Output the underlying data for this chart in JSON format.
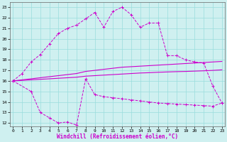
{
  "xlabel": "Windchill (Refroidissement éolien,°C)",
  "ylabel": "",
  "bg_color": "#cff0f0",
  "line_color": "#cc00cc",
  "grid_color": "#99dddd",
  "x_ticks": [
    0,
    1,
    2,
    3,
    4,
    5,
    6,
    7,
    8,
    9,
    10,
    11,
    12,
    13,
    14,
    15,
    16,
    17,
    18,
    19,
    20,
    21,
    22,
    23
  ],
  "y_ticks": [
    12,
    13,
    14,
    15,
    16,
    17,
    18,
    19,
    20,
    21,
    22,
    23
  ],
  "xlim": [
    -0.3,
    23.3
  ],
  "ylim": [
    11.7,
    23.5
  ],
  "line1_x": [
    0,
    1,
    2,
    3,
    4,
    5,
    6,
    7,
    8,
    9,
    10,
    11,
    12,
    13,
    14,
    15,
    16,
    17,
    18,
    19,
    20,
    21,
    22,
    23
  ],
  "line1_y": [
    16.0,
    16.7,
    17.8,
    18.5,
    19.5,
    20.5,
    21.0,
    21.3,
    21.9,
    22.5,
    21.1,
    22.6,
    23.0,
    22.3,
    21.1,
    21.5,
    21.5,
    18.4,
    18.4,
    18.0,
    17.8,
    17.7,
    15.5,
    13.9
  ],
  "line2_x": [
    0,
    1,
    2,
    3,
    4,
    5,
    6,
    7,
    8,
    9,
    10,
    11,
    12,
    13,
    14,
    15,
    16,
    17,
    18,
    19,
    20,
    21,
    22,
    23
  ],
  "line2_y": [
    16.0,
    16.1,
    16.2,
    16.3,
    16.4,
    16.5,
    16.6,
    16.7,
    16.9,
    17.0,
    17.1,
    17.2,
    17.3,
    17.35,
    17.4,
    17.45,
    17.5,
    17.55,
    17.6,
    17.65,
    17.7,
    17.75,
    17.8,
    17.85
  ],
  "line3_x": [
    0,
    1,
    2,
    3,
    4,
    5,
    6,
    7,
    8,
    9,
    10,
    11,
    12,
    13,
    14,
    15,
    16,
    17,
    18,
    19,
    20,
    21,
    22,
    23
  ],
  "line3_y": [
    16.0,
    16.05,
    16.1,
    16.15,
    16.2,
    16.25,
    16.3,
    16.35,
    16.45,
    16.5,
    16.55,
    16.6,
    16.65,
    16.7,
    16.75,
    16.78,
    16.82,
    16.85,
    16.88,
    16.9,
    16.93,
    16.96,
    17.0,
    17.05
  ],
  "line4_x": [
    0,
    2,
    3,
    4,
    5,
    6,
    7,
    8,
    9,
    10,
    11,
    12,
    13,
    14,
    15,
    16,
    17,
    18,
    19,
    20,
    21,
    22,
    23
  ],
  "line4_y": [
    16.0,
    15.0,
    13.0,
    12.5,
    12.0,
    12.1,
    11.8,
    16.2,
    14.7,
    14.5,
    14.4,
    14.3,
    14.2,
    14.1,
    14.0,
    13.9,
    13.85,
    13.8,
    13.75,
    13.7,
    13.65,
    13.6,
    13.9
  ]
}
